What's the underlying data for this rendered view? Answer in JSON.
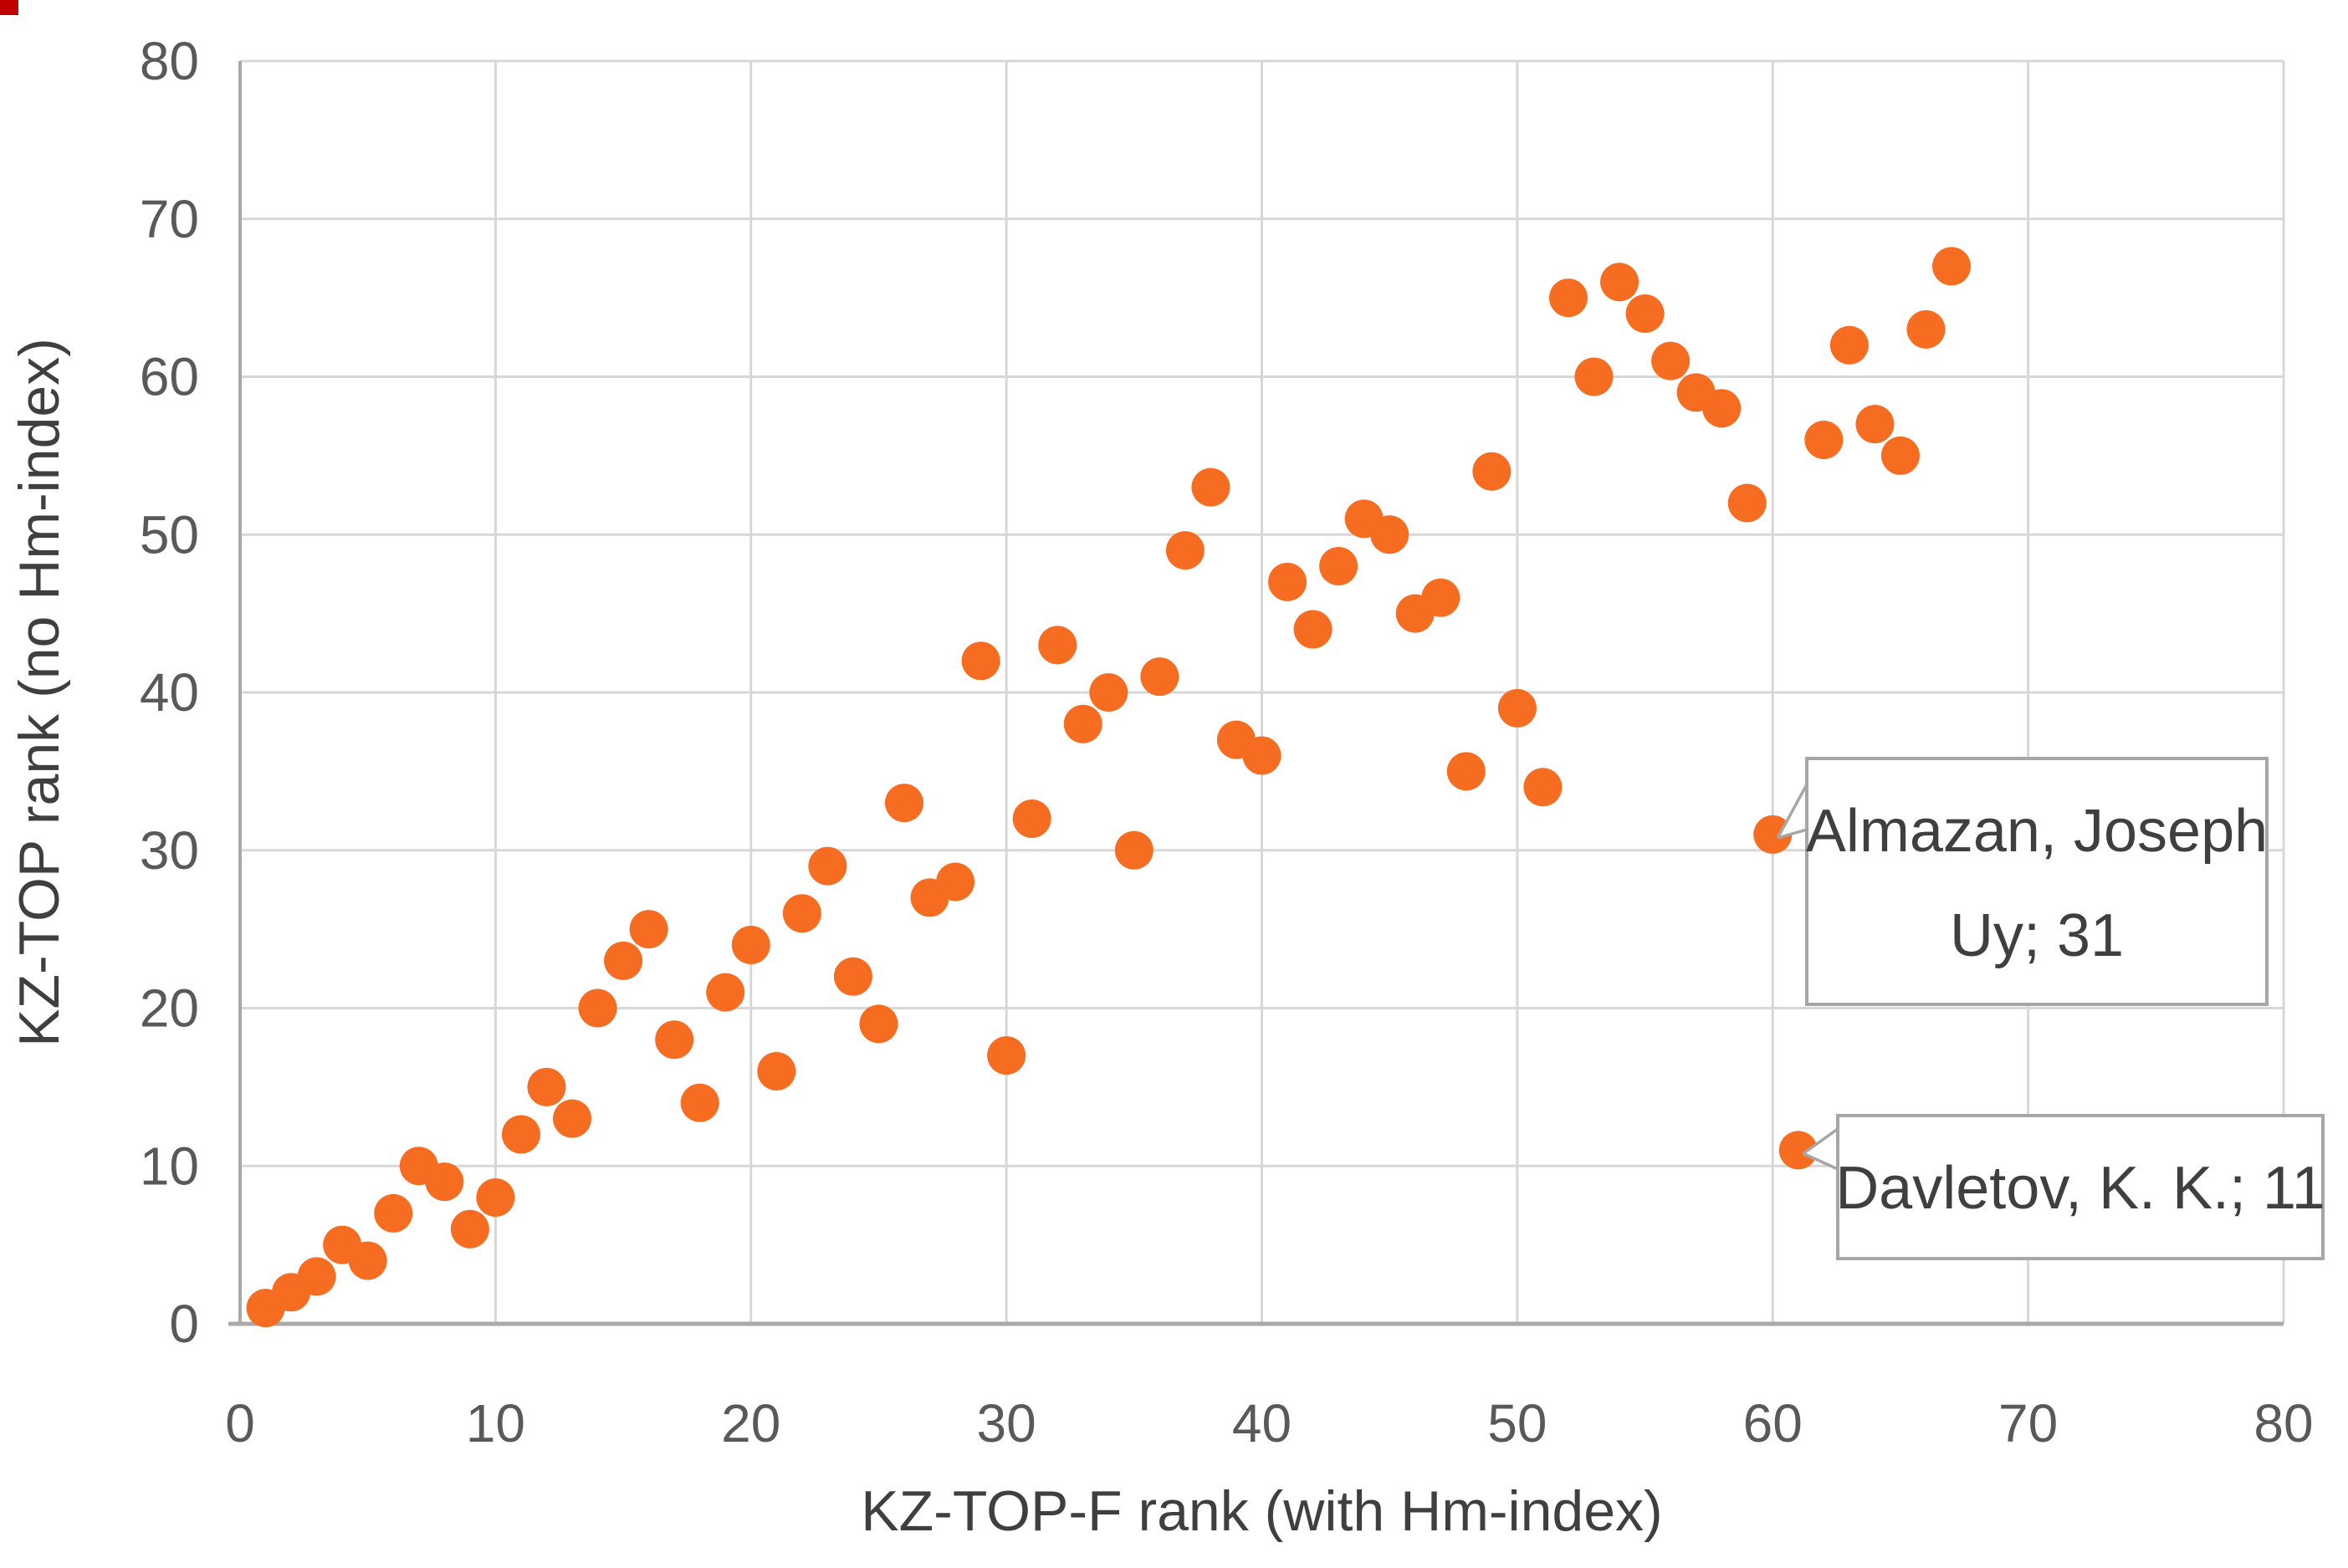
{
  "window": {
    "background": "#FFFFFF",
    "corner_mark_color": "#C00000"
  },
  "chart_data": {
    "type": "scatter",
    "title": "",
    "xlabel": "KZ-TOP-F rank (with Hm-index)",
    "ylabel": "KZ-TOP rank (no Hm-index)",
    "xlim": [
      0,
      80
    ],
    "ylim": [
      0,
      80
    ],
    "xticks": [
      0,
      10,
      20,
      30,
      40,
      50,
      60,
      70,
      80
    ],
    "yticks": [
      0,
      10,
      20,
      30,
      40,
      50,
      60,
      70,
      80
    ],
    "grid": true,
    "legend": false,
    "marker": {
      "shape": "circle",
      "color": "#F66C21",
      "radius_px": 23
    },
    "colors": {
      "gridline": "#D7D7D7",
      "axis_line": "#A9A9A9",
      "tick_label": "#595959",
      "axis_title": "#3F3F3F",
      "callout_border": "#A6A6A6",
      "callout_fill": "#FFFFFF",
      "callout_text": "#3F3F3F"
    },
    "points": [
      [
        1,
        1
      ],
      [
        2,
        2
      ],
      [
        3,
        3
      ],
      [
        4,
        5
      ],
      [
        5,
        4
      ],
      [
        6,
        7
      ],
      [
        7,
        10
      ],
      [
        8,
        9
      ],
      [
        9,
        6
      ],
      [
        10,
        8
      ],
      [
        11,
        12
      ],
      [
        12,
        15
      ],
      [
        13,
        13
      ],
      [
        14,
        20
      ],
      [
        15,
        23
      ],
      [
        16,
        25
      ],
      [
        17,
        18
      ],
      [
        18,
        14
      ],
      [
        19,
        21
      ],
      [
        20,
        24
      ],
      [
        21,
        16
      ],
      [
        22,
        26
      ],
      [
        23,
        29
      ],
      [
        24,
        22
      ],
      [
        25,
        19
      ],
      [
        26,
        33
      ],
      [
        27,
        27
      ],
      [
        28,
        28
      ],
      [
        29,
        42
      ],
      [
        30,
        17
      ],
      [
        31,
        32
      ],
      [
        32,
        43
      ],
      [
        33,
        38
      ],
      [
        34,
        40
      ],
      [
        35,
        30
      ],
      [
        36,
        41
      ],
      [
        37,
        49
      ],
      [
        38,
        53
      ],
      [
        39,
        37
      ],
      [
        40,
        36
      ],
      [
        41,
        47
      ],
      [
        42,
        44
      ],
      [
        43,
        48
      ],
      [
        44,
        51
      ],
      [
        45,
        50
      ],
      [
        46,
        45
      ],
      [
        47,
        46
      ],
      [
        48,
        35
      ],
      [
        49,
        54
      ],
      [
        50,
        39
      ],
      [
        51,
        34
      ],
      [
        52,
        65
      ],
      [
        53,
        60
      ],
      [
        54,
        66
      ],
      [
        55,
        64
      ],
      [
        56,
        61
      ],
      [
        57,
        59
      ],
      [
        58,
        58
      ],
      [
        59,
        52
      ],
      [
        60,
        31
      ],
      [
        61,
        11
      ],
      [
        62,
        56
      ],
      [
        63,
        62
      ],
      [
        64,
        57
      ],
      [
        65,
        55
      ],
      [
        66,
        63
      ],
      [
        67,
        67
      ]
    ],
    "annotations": [
      {
        "text": "Almazan, Joseph Uy; 31",
        "lines": [
          "Almazan, Joseph",
          "Uy; 31"
        ],
        "point": [
          60,
          31
        ]
      },
      {
        "text": "Davletov, K. K.; 11",
        "lines": [
          "Davletov, K. K.; 11"
        ],
        "point": [
          61,
          11
        ]
      }
    ]
  }
}
